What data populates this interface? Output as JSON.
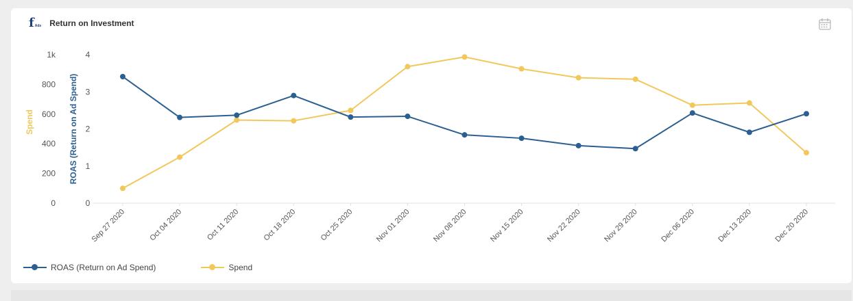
{
  "header": {
    "logo_text": "f",
    "logo_sub": "Ads",
    "title": "Return on Investment"
  },
  "icons": {
    "calendar": "calendar-icon"
  },
  "colors": {
    "roas": "#2c5f91",
    "spend": "#f2c75c",
    "grid": "#e0e0e0",
    "tick": "#555555"
  },
  "chart_data": {
    "type": "line",
    "title": "Return on Investment",
    "categories": [
      "Sep 27 2020",
      "Oct 04 2020",
      "Oct 11 2020",
      "Oct 18 2020",
      "Oct 25 2020",
      "Nov 01 2020",
      "Nov 08 2020",
      "Nov 15 2020",
      "Nov 22 2020",
      "Nov 29 2020",
      "Dec 06 2020",
      "Dec 13 2020",
      "Dec 20 2020"
    ],
    "series": [
      {
        "name": "ROAS (Return on Ad Spend)",
        "axis": "right",
        "values": [
          3.41,
          2.31,
          2.37,
          2.9,
          2.32,
          2.34,
          1.84,
          1.75,
          1.55,
          1.47,
          2.43,
          1.91,
          2.41
        ]
      },
      {
        "name": "Spend",
        "axis": "left",
        "values": [
          100,
          310,
          560,
          555,
          625,
          920,
          985,
          905,
          845,
          835,
          660,
          675,
          340
        ]
      }
    ],
    "y_left": {
      "label": "Spend",
      "ticks": [
        "0",
        "200",
        "400",
        "600",
        "800",
        "1k"
      ],
      "range": [
        0,
        1000
      ]
    },
    "y_right": {
      "label": "ROAS (Return on Ad Spend)",
      "ticks": [
        "0",
        "1",
        "2",
        "3",
        "4"
      ],
      "range": [
        0,
        4
      ]
    },
    "legend_position": "bottom-left"
  }
}
